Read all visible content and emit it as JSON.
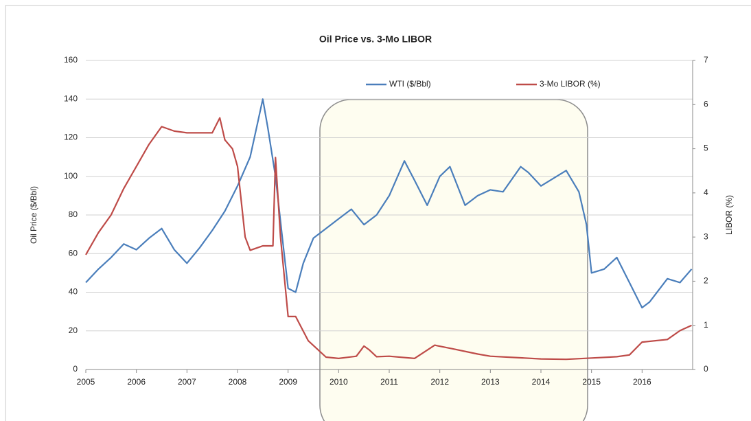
{
  "chart_data": {
    "type": "line",
    "title": "Oil Price  vs. 3-Mo LIBOR",
    "ylabel": "Oil Price ($/Bbl)",
    "y2label": "LIBOR (%)",
    "xlim": [
      2005,
      2017
    ],
    "xticks": [
      2005,
      2006,
      2007,
      2008,
      2009,
      2010,
      2011,
      2012,
      2013,
      2014,
      2015,
      2016
    ],
    "ylim": [
      0,
      160
    ],
    "yticks": [
      0,
      20,
      40,
      60,
      80,
      100,
      120,
      140,
      160
    ],
    "y2lim": [
      0,
      7
    ],
    "y2ticks": [
      0,
      1,
      2,
      3,
      4,
      5,
      6,
      7
    ],
    "grid": true,
    "legend": "upper center",
    "series": [
      {
        "name": "WTI ($/Bbl)",
        "color": "#4a7ebb",
        "axis": "y",
        "x": [
          2005.0,
          2005.25,
          2005.5,
          2005.75,
          2006.0,
          2006.25,
          2006.5,
          2006.75,
          2007.0,
          2007.25,
          2007.5,
          2007.75,
          2008.0,
          2008.25,
          2008.5,
          2008.6,
          2008.75,
          2008.9,
          2009.0,
          2009.15,
          2009.3,
          2009.5,
          2009.75,
          2010.0,
          2010.25,
          2010.5,
          2010.75,
          2011.0,
          2011.3,
          2011.5,
          2011.75,
          2012.0,
          2012.2,
          2012.5,
          2012.75,
          2013.0,
          2013.25,
          2013.6,
          2013.75,
          2014.0,
          2014.5,
          2014.75,
          2014.9,
          2015.0,
          2015.25,
          2015.5,
          2015.75,
          2016.0,
          2016.15,
          2016.5,
          2016.75,
          2016.98
        ],
        "values": [
          45,
          52,
          58,
          65,
          62,
          68,
          73,
          62,
          55,
          63,
          72,
          82,
          95,
          110,
          140,
          125,
          100,
          65,
          42,
          40,
          55,
          68,
          73,
          78,
          83,
          75,
          80,
          90,
          108,
          98,
          85,
          100,
          105,
          85,
          90,
          93,
          92,
          105,
          102,
          95,
          103,
          92,
          75,
          50,
          52,
          58,
          45,
          32,
          35,
          47,
          45,
          52
        ]
      },
      {
        "name": "3-Mo LIBOR (%)",
        "color": "#be4b48",
        "axis": "y2",
        "x": [
          2005.0,
          2005.25,
          2005.5,
          2005.75,
          2006.0,
          2006.25,
          2006.5,
          2006.75,
          2007.0,
          2007.5,
          2007.65,
          2007.75,
          2007.9,
          2008.0,
          2008.15,
          2008.25,
          2008.5,
          2008.7,
          2008.75,
          2008.85,
          2009.0,
          2009.15,
          2009.4,
          2009.75,
          2010.0,
          2010.35,
          2010.5,
          2010.6,
          2010.75,
          2011.0,
          2011.5,
          2011.9,
          2012.25,
          2012.75,
          2013.0,
          2013.5,
          2014.0,
          2014.5,
          2015.0,
          2015.5,
          2015.75,
          2016.0,
          2016.5,
          2016.75,
          2016.98
        ],
        "values": [
          2.6,
          3.1,
          3.5,
          4.1,
          4.6,
          5.1,
          5.5,
          5.4,
          5.36,
          5.36,
          5.7,
          5.2,
          5.0,
          4.6,
          3.0,
          2.7,
          2.8,
          2.8,
          4.8,
          3.0,
          1.2,
          1.2,
          0.65,
          0.28,
          0.25,
          0.3,
          0.53,
          0.45,
          0.29,
          0.3,
          0.25,
          0.55,
          0.47,
          0.35,
          0.3,
          0.27,
          0.24,
          0.23,
          0.26,
          0.29,
          0.33,
          0.62,
          0.68,
          0.88,
          1.0
        ]
      }
    ]
  }
}
